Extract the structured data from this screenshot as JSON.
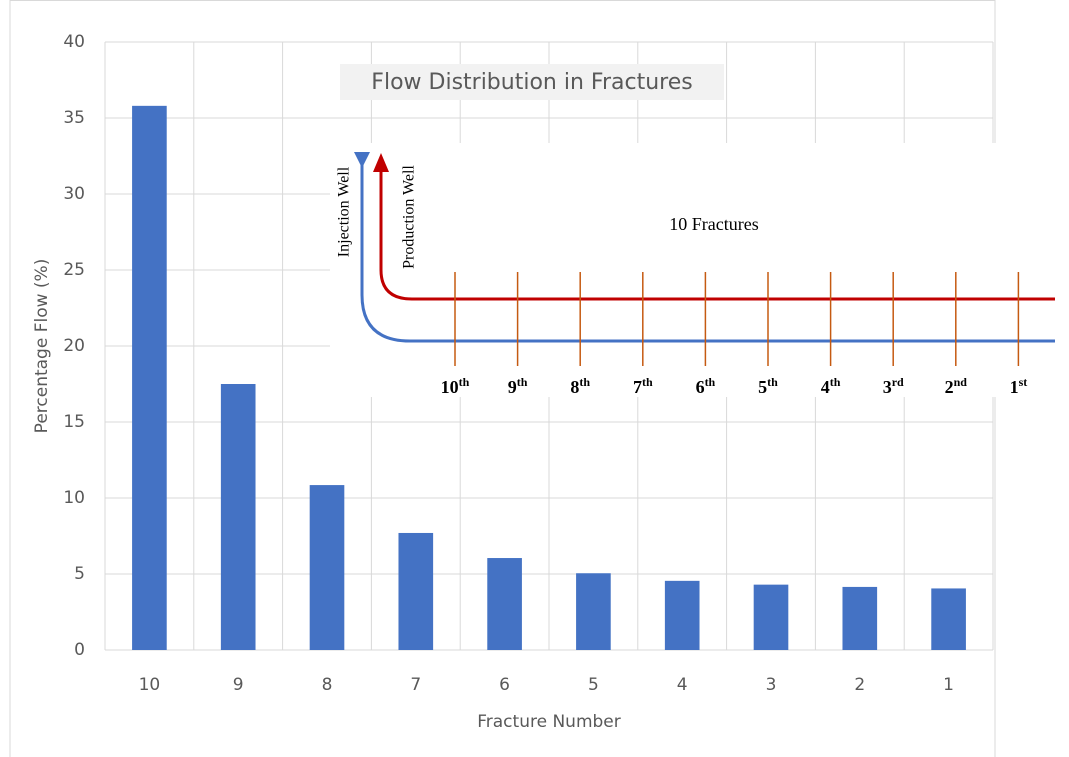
{
  "chart_data": {
    "type": "bar",
    "title": "Flow Distribution in Fractures",
    "x_label": "Fracture Number",
    "y_label": "Percentage Flow (%)",
    "categories": [
      "10",
      "9",
      "8",
      "7",
      "6",
      "5",
      "4",
      "3",
      "2",
      "1"
    ],
    "values": [
      35.8,
      17.5,
      10.85,
      7.7,
      6.05,
      5.05,
      4.55,
      4.3,
      4.15,
      4.05
    ],
    "color": "#4472c4",
    "ylim": [
      0,
      40
    ],
    "yticks": [
      0,
      5,
      10,
      15,
      20,
      25,
      30,
      35,
      40
    ],
    "grid": true
  },
  "inset": {
    "label": "10 Fractures",
    "injection": "Injection Well",
    "production": "Production Well",
    "fractures": [
      {
        "num": "10",
        "sup": "th"
      },
      {
        "num": "9",
        "sup": "th"
      },
      {
        "num": "8",
        "sup": "th"
      },
      {
        "num": "7",
        "sup": "th"
      },
      {
        "num": "6",
        "sup": "th"
      },
      {
        "num": "5",
        "sup": "th"
      },
      {
        "num": "4",
        "sup": "th"
      },
      {
        "num": "3",
        "sup": "rd"
      },
      {
        "num": "2",
        "sup": "nd"
      },
      {
        "num": "1",
        "sup": "st"
      }
    ]
  }
}
